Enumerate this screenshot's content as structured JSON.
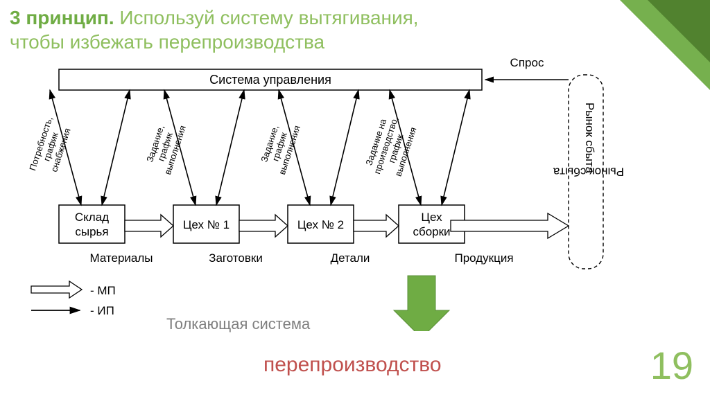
{
  "title": {
    "bold": "3 принцип.",
    "rest1": "Используй систему вытягивания,",
    "rest2": "чтобы избежать перепроизводства",
    "color_bold": "#6fac44",
    "color_rest": "#8fbf5f"
  },
  "diagram": {
    "top_box": "Система управления",
    "demand": "Спрос",
    "market": "Рынок сбыта",
    "boxes": [
      {
        "line1": "Склад",
        "line2": "сырья"
      },
      {
        "line1": "Цех № 1",
        "line2": ""
      },
      {
        "line1": "Цех № 2",
        "line2": ""
      },
      {
        "line1": "Цех",
        "line2": "сборки"
      }
    ],
    "bottom_labels": [
      "Материалы",
      "Заготовки",
      "Детали",
      "Продукция"
    ],
    "slanted": [
      {
        "line1": "Потребность,",
        "line2": "график",
        "line3": "снабжения"
      },
      {
        "line1": "Задание,",
        "line2": "график",
        "line3": "выполнения"
      },
      {
        "line1": "Задание,",
        "line2": "график",
        "line3": "выполнения"
      },
      {
        "line1": "Задание на",
        "line2": "производство,",
        "line3": "график",
        "line4": "выполнения"
      }
    ],
    "legend_mp": "- МП",
    "legend_ip": "- ИП",
    "colors": {
      "box_stroke": "#000000",
      "text": "#000000",
      "green_arrow": "#6fac44",
      "green_arrow_dark": "#5a8f38"
    }
  },
  "caption_push": "Толкающая система",
  "caption_over": "перепроизводство",
  "caption_push_color": "#7f7f7f",
  "caption_over_color": "#c0504d",
  "page_number": "19",
  "page_number_color": "#8fbf5f"
}
